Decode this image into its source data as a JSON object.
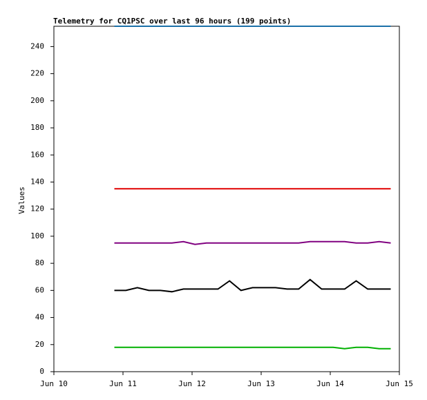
{
  "chart_data": {
    "type": "line",
    "title": "Telemetry for CQ1PSC over last 96 hours (199 points)",
    "y_label": "Values",
    "xlim": [
      "Jun 10 00:00",
      "Jun 15 00:00"
    ],
    "xticks": [
      {
        "value": "Jun 10 00:00",
        "label": "Jun 10"
      },
      {
        "value": "Jun 11 00:00",
        "label": "Jun 11"
      },
      {
        "value": "Jun 12 00:00",
        "label": "Jun 12"
      },
      {
        "value": "Jun 13 00:00",
        "label": "Jun 13"
      },
      {
        "value": "Jun 14 00:00",
        "label": "Jun 14"
      },
      {
        "value": "Jun 15 00:00",
        "label": "Jun 15"
      }
    ],
    "ylim": [
      0,
      255
    ],
    "yticks": [
      0,
      20,
      40,
      60,
      80,
      100,
      120,
      140,
      160,
      180,
      200,
      220,
      240
    ],
    "x": [
      "Jun 10 21:00",
      "Jun 11 01:00",
      "Jun 11 05:00",
      "Jun 11 09:00",
      "Jun 11 13:00",
      "Jun 11 17:00",
      "Jun 11 21:00",
      "Jun 12 01:00",
      "Jun 12 05:00",
      "Jun 12 09:00",
      "Jun 12 13:00",
      "Jun 12 17:00",
      "Jun 12 21:00",
      "Jun 13 01:00",
      "Jun 13 05:00",
      "Jun 13 09:00",
      "Jun 13 13:00",
      "Jun 13 17:00",
      "Jun 13 21:00",
      "Jun 14 01:00",
      "Jun 14 05:00",
      "Jun 14 09:00",
      "Jun 14 13:00",
      "Jun 14 17:00",
      "Jun 14 21:00"
    ],
    "series": [
      {
        "color": "#1a70a8",
        "values": [
          255,
          255,
          255,
          255,
          255,
          255,
          255,
          255,
          255,
          255,
          255,
          255,
          255,
          255,
          255,
          255,
          255,
          255,
          255,
          255,
          255,
          255,
          255,
          255,
          255
        ]
      },
      {
        "color": "#e00000",
        "values": [
          135,
          135,
          135,
          135,
          135,
          135,
          135,
          135,
          135,
          135,
          135,
          135,
          135,
          135,
          135,
          135,
          135,
          135,
          135,
          135,
          135,
          135,
          135,
          135,
          135
        ]
      },
      {
        "color": "#800080",
        "values": [
          95,
          95,
          95,
          95,
          95,
          95,
          96,
          94,
          95,
          95,
          95,
          95,
          95,
          95,
          95,
          95,
          95,
          96,
          96,
          96,
          96,
          95,
          95,
          96,
          95
        ]
      },
      {
        "color": "#000000",
        "values": [
          60,
          60,
          62,
          60,
          60,
          59,
          61,
          61,
          61,
          61,
          67,
          60,
          62,
          62,
          62,
          61,
          61,
          68,
          61,
          61,
          61,
          67,
          61,
          61,
          61
        ]
      },
      {
        "color": "#00b000",
        "values": [
          18,
          18,
          18,
          18,
          18,
          18,
          18,
          18,
          18,
          18,
          18,
          18,
          18,
          18,
          18,
          18,
          18,
          18,
          18,
          18,
          17,
          18,
          18,
          17,
          17
        ]
      }
    ]
  }
}
